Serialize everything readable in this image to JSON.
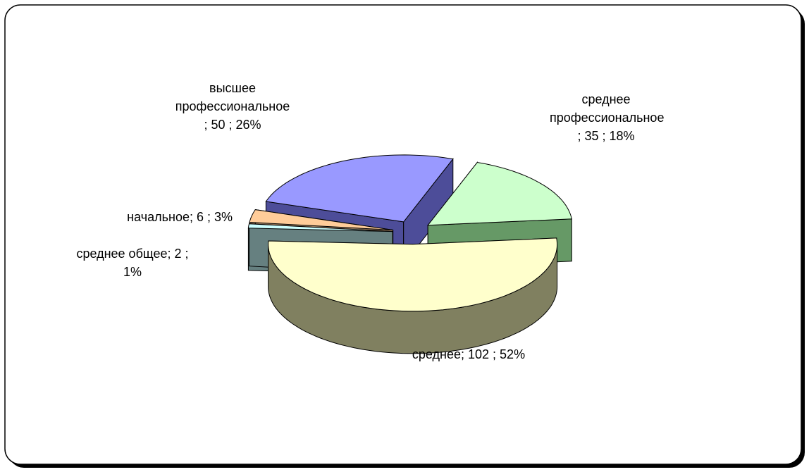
{
  "chart_data": {
    "type": "pie",
    "three_d": true,
    "values": [
      35,
      102,
      2,
      6,
      50
    ],
    "value_labels": [
      "среднее профессиональное ; 35 ; 18%",
      "среднее; 102 ; 52%",
      "среднее общее; 2 ; 1%",
      "начальное; 6 ; 3%",
      "высшее профессиональное ; 50 ; 26%"
    ],
    "colors": [
      "#ccffcc",
      "#ffffcc",
      "#ccffff",
      "#ffcc99",
      "#9999ff"
    ],
    "side_colors": [
      "#669966",
      "#808060",
      "#668080",
      "#997a5c",
      "#4d4d99"
    ]
  }
}
